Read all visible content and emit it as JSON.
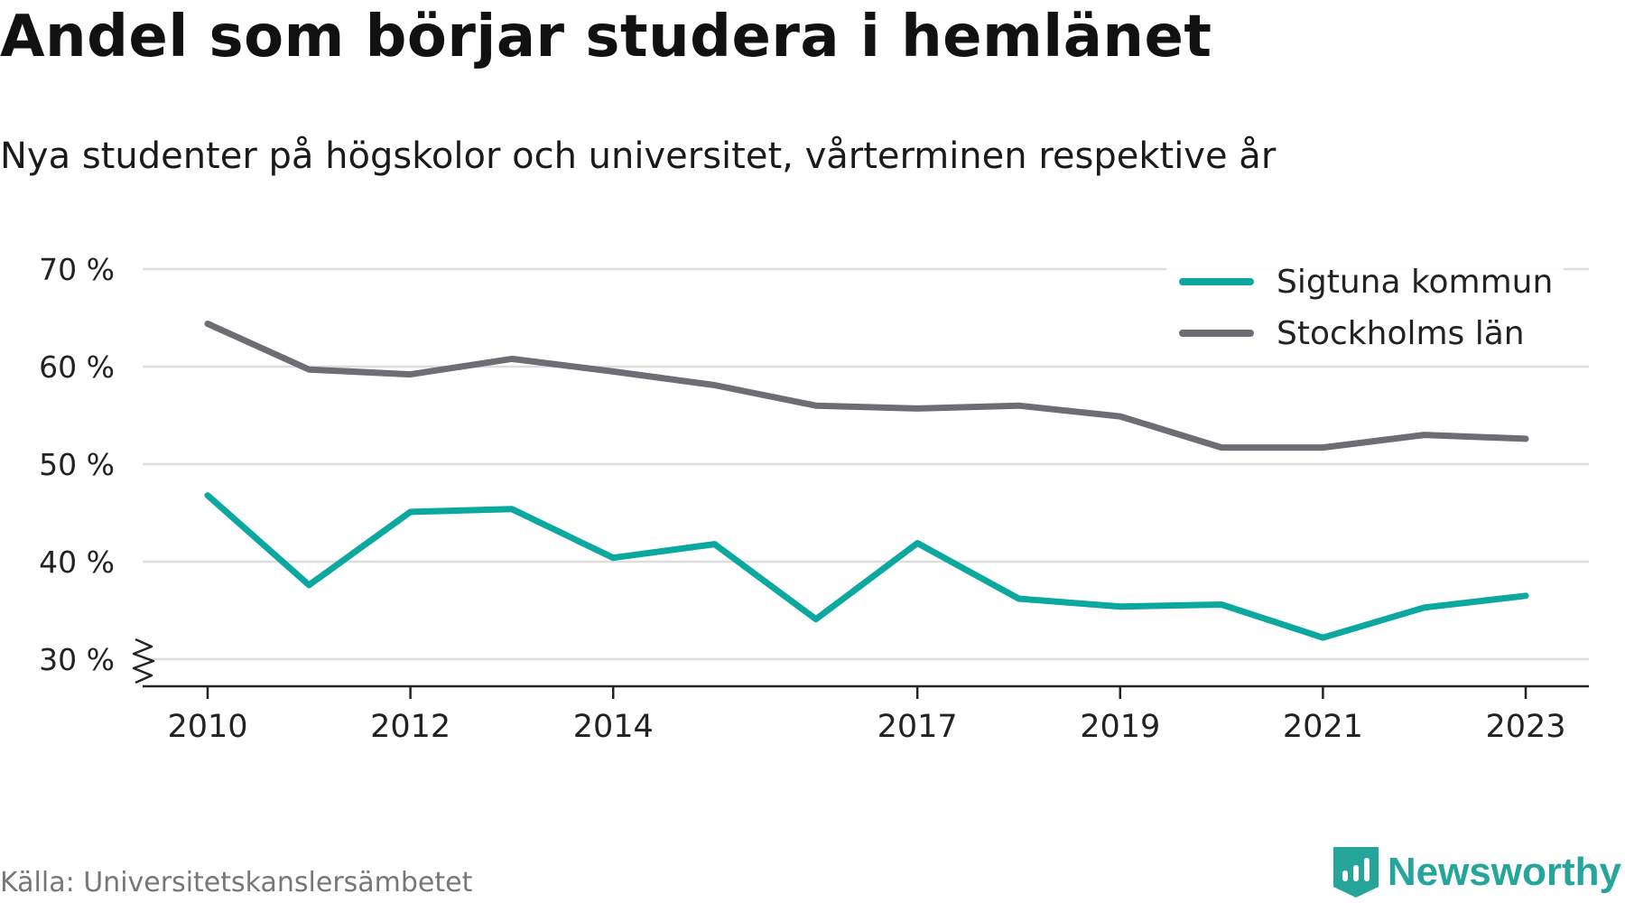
{
  "header": {
    "title": "Andel som börjar studera i hemlänet",
    "subtitle": "Nya studenter på högskolor och universitet, vårterminen respektive år"
  },
  "footer": {
    "source": "Källa: Universitetskanslersämbetet",
    "brand": "Newsworthy",
    "brand_icon": "newsworthy-logo-icon"
  },
  "colors": {
    "sigtuna": "#0aa89e",
    "stockholm": "#6e6d74",
    "grid": "#dddddd",
    "axis": "#222222",
    "brand": "#26a69a"
  },
  "chart_data": {
    "type": "line",
    "x": [
      2010,
      2011,
      2012,
      2013,
      2014,
      2015,
      2016,
      2017,
      2018,
      2019,
      2020,
      2021,
      2022,
      2023
    ],
    "x_tick_labels": [
      "2010",
      "2012",
      "2014",
      "2017",
      "2019",
      "2021",
      "2023"
    ],
    "y_ticks": [
      30,
      40,
      50,
      60,
      70
    ],
    "y_tick_labels": [
      "30 %",
      "40 %",
      "50 %",
      "60 %",
      "70 %"
    ],
    "ylim": [
      30,
      70
    ],
    "y_axis_break": true,
    "grid": true,
    "legend_position": "top-right",
    "series": [
      {
        "name": "Sigtuna kommun",
        "color": "#0aa89e",
        "values": [
          46.8,
          37.6,
          45.1,
          45.4,
          40.4,
          41.8,
          34.1,
          41.9,
          36.2,
          35.4,
          35.6,
          32.2,
          35.3,
          36.5
        ]
      },
      {
        "name": "Stockholms län",
        "color": "#6e6d74",
        "values": [
          64.4,
          59.7,
          59.2,
          60.8,
          59.5,
          58.1,
          56.0,
          55.7,
          56.0,
          54.9,
          51.7,
          51.7,
          53.0,
          52.6
        ]
      }
    ]
  }
}
